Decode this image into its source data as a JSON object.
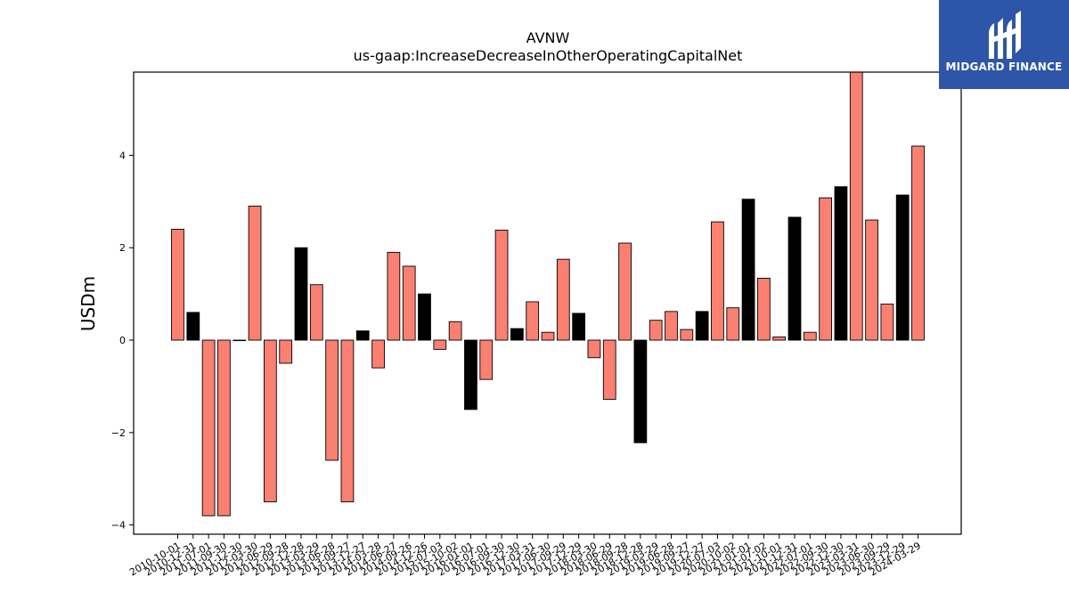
{
  "chart_data": {
    "type": "bar",
    "title": "AVNW",
    "subtitle": "us-gaap:IncreaseDecreaseInOtherOperatingCapitalNet",
    "ylabel": "USDm",
    "xlabel": "",
    "ylim": [
      -4.2,
      5.8
    ],
    "yticks": [
      -4,
      -2,
      0,
      2,
      4
    ],
    "grid": false,
    "legend": "none",
    "colors": {
      "positive_bar": "#fa8072",
      "highlight_bar": "#000000",
      "edge": "#000000"
    },
    "categories": [
      "2010-10-01",
      "2010-12-31",
      "2011-07-01",
      "2011-09-30",
      "2011-12-30",
      "2012-03-30",
      "2012-06-29",
      "2012-09-28",
      "2012-12-28",
      "2013-03-29",
      "2013-06-28",
      "2013-09-27",
      "2013-12-27",
      "2014-03-28",
      "2014-06-27",
      "2014-09-26",
      "2014-12-26",
      "2015-07-03",
      "2015-10-02",
      "2016-01-01",
      "2016-07-01",
      "2016-09-30",
      "2016-12-30",
      "2017-03-31",
      "2017-06-30",
      "2017-09-29",
      "2017-12-29",
      "2018-03-30",
      "2018-06-29",
      "2018-09-28",
      "2018-12-28",
      "2019-03-29",
      "2019-06-28",
      "2019-09-27",
      "2019-12-27",
      "2020-07-03",
      "2020-10-02",
      "2021-01-01",
      "2021-07-02",
      "2021-10-01",
      "2021-12-31",
      "2022-07-01",
      "2022-09-30",
      "2022-12-30",
      "2023-03-31",
      "2023-06-30",
      "2023-09-29",
      "2023-12-29",
      "2024-03-29"
    ],
    "values": [
      2.4,
      0.6,
      -3.8,
      -3.8,
      0.0,
      2.9,
      -3.5,
      -0.5,
      2.0,
      1.2,
      -2.6,
      -3.5,
      0.2,
      -0.6,
      1.9,
      1.6,
      1.0,
      -0.2,
      0.4,
      -1.5,
      -0.85,
      2.38,
      0.25,
      0.83,
      0.17,
      1.75,
      0.58,
      -0.38,
      -1.28,
      2.1,
      -2.22,
      0.43,
      0.62,
      0.23,
      0.62,
      2.56,
      0.7,
      3.05,
      1.34,
      0.07,
      2.66,
      0.17,
      3.08,
      3.32,
      5.9,
      2.6,
      0.78,
      3.14,
      4.2
    ],
    "highlighted": [
      false,
      true,
      false,
      false,
      false,
      false,
      false,
      false,
      true,
      false,
      false,
      false,
      true,
      false,
      false,
      false,
      true,
      false,
      false,
      true,
      false,
      false,
      true,
      false,
      false,
      false,
      true,
      false,
      false,
      false,
      true,
      false,
      false,
      false,
      true,
      false,
      false,
      true,
      false,
      false,
      true,
      false,
      false,
      true,
      false,
      false,
      false,
      true,
      false
    ]
  },
  "logo": {
    "text": "MIDGARD FINANCE"
  }
}
